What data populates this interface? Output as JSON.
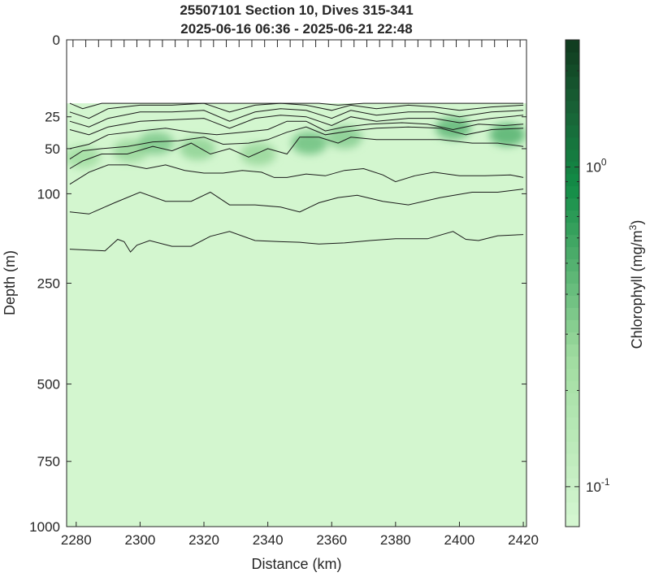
{
  "chart_data": {
    "type": "heatmap",
    "title": "25507101 Section 10, Dives 315-341",
    "subtitle": "2025-06-16 06:36 - 2025-06-21 22:48",
    "xlabel": "Distance (km)",
    "ylabel": "Depth (m)",
    "xlim": [
      2277,
      2421
    ],
    "x_ticks": [
      2280,
      2300,
      2320,
      2340,
      2360,
      2380,
      2400,
      2420
    ],
    "x_tick_labels": [
      "2280",
      "2300",
      "2320",
      "2340",
      "2360",
      "2380",
      "2400",
      "2420"
    ],
    "ylim": [
      0,
      1000
    ],
    "y_scale": "sqrt",
    "y_ticks": [
      0,
      25,
      50,
      100,
      250,
      500,
      750,
      1000
    ],
    "y_tick_labels": [
      "0",
      "25",
      "50",
      "100",
      "250",
      "500",
      "750",
      "1000"
    ],
    "colorbar": {
      "label": "Chlorophyll (mg/m",
      "label_superscript": "3",
      "label_close": ")",
      "scale": "log",
      "range": [
        0.075,
        2.5
      ],
      "tick_values": [
        1.0,
        0.1
      ],
      "tick_labels": [
        {
          "base": "10",
          "exp": "0"
        },
        {
          "base": "10",
          "exp": "-1"
        }
      ],
      "colors": {
        "low": "#d6f7d2",
        "high": "#0f3a1e"
      }
    },
    "data_top_depth": 17,
    "background_value": 0.08,
    "dive_positions_km": [
      2279,
      2283,
      2287,
      2291,
      2295,
      2299,
      2303,
      2307,
      2311,
      2315,
      2319,
      2323,
      2327,
      2331,
      2335,
      2339,
      2343,
      2347,
      2351,
      2355,
      2359,
      2363,
      2367,
      2371,
      2375,
      2379,
      2383,
      2387,
      2391,
      2395,
      2399,
      2403,
      2407,
      2411,
      2415,
      2419
    ],
    "chlorophyll_blobs": [
      {
        "x": 2282,
        "depth": 58,
        "value": 0.25
      },
      {
        "x": 2297,
        "depth": 52,
        "value": 0.28
      },
      {
        "x": 2305,
        "depth": 45,
        "value": 0.35
      },
      {
        "x": 2318,
        "depth": 50,
        "value": 0.3
      },
      {
        "x": 2337,
        "depth": 55,
        "value": 0.28
      },
      {
        "x": 2353,
        "depth": 45,
        "value": 0.4
      },
      {
        "x": 2364,
        "depth": 40,
        "value": 0.32
      },
      {
        "x": 2398,
        "depth": 33,
        "value": 0.45
      },
      {
        "x": 2415,
        "depth": 38,
        "value": 0.5
      }
    ],
    "contours": [
      {
        "x": [
          2278,
          2282,
          2288,
          2298,
          2310,
          2320,
          2330,
          2340,
          2350,
          2356,
          2362,
          2370,
          2380,
          2390,
          2400,
          2410,
          2420
        ],
        "depth": [
          17,
          20,
          17,
          17,
          17,
          17,
          17,
          17,
          17,
          17,
          18,
          17,
          17,
          17,
          17,
          17,
          17
        ]
      },
      {
        "x": [
          2278,
          2284,
          2290,
          2300,
          2310,
          2320,
          2328,
          2336,
          2344,
          2352,
          2360,
          2366,
          2374,
          2384,
          2392,
          2400,
          2410,
          2420
        ],
        "depth": [
          22,
          26,
          20,
          18,
          18,
          17,
          22,
          18,
          17,
          18,
          21,
          18,
          20,
          18,
          19,
          21,
          19,
          18
        ]
      },
      {
        "x": [
          2278,
          2284,
          2290,
          2300,
          2310,
          2320,
          2328,
          2336,
          2344,
          2352,
          2360,
          2366,
          2374,
          2384,
          2392,
          2400,
          2410,
          2420
        ],
        "depth": [
          28,
          32,
          26,
          22,
          22,
          21,
          28,
          22,
          20,
          21,
          26,
          21,
          24,
          22,
          22,
          25,
          22,
          21
        ]
      },
      {
        "x": [
          2278,
          2284,
          2290,
          2300,
          2310,
          2320,
          2328,
          2336,
          2344,
          2352,
          2360,
          2366,
          2374,
          2384,
          2392,
          2400,
          2410,
          2420
        ],
        "depth": [
          34,
          38,
          32,
          28,
          27,
          26,
          33,
          26,
          24,
          25,
          31,
          25,
          28,
          26,
          26,
          29,
          26,
          24
        ]
      },
      {
        "x": [
          2278,
          2284,
          2290,
          2300,
          2308,
          2316,
          2324,
          2332,
          2340,
          2346,
          2352,
          2358,
          2364,
          2372,
          2382,
          2390,
          2398,
          2406,
          2414,
          2420
        ],
        "depth": [
          50,
          46,
          38,
          35,
          33,
          36,
          38,
          36,
          34,
          28,
          28,
          35,
          32,
          30,
          29,
          30,
          34,
          30,
          31,
          30
        ]
      },
      {
        "x": [
          2278,
          2282,
          2288,
          2296,
          2304,
          2312,
          2320,
          2326,
          2334,
          2340,
          2346,
          2352,
          2358,
          2366,
          2374,
          2384,
          2394,
          2402,
          2410,
          2420
        ],
        "depth": [
          60,
          52,
          50,
          48,
          44,
          43,
          40,
          46,
          45,
          42,
          36,
          32,
          38,
          35,
          33,
          32,
          33,
          38,
          34,
          33
        ]
      },
      {
        "x": [
          2278,
          2282,
          2288,
          2296,
          2304,
          2310,
          2316,
          2322,
          2328,
          2334,
          2340,
          2346,
          2350,
          2356,
          2362,
          2366,
          2374,
          2384,
          2394,
          2404,
          2412,
          2420
        ],
        "depth": [
          70,
          62,
          55,
          55,
          48,
          52,
          45,
          55,
          50,
          58,
          50,
          55,
          40,
          40,
          45,
          40,
          42,
          42,
          42,
          45,
          45,
          48
        ]
      },
      {
        "x": [
          2278,
          2284,
          2290,
          2296,
          2302,
          2308,
          2314,
          2320,
          2326,
          2332,
          2338,
          2342,
          2346,
          2352,
          2358,
          2364,
          2370,
          2376,
          2380,
          2386,
          2392,
          2400,
          2408,
          2416,
          2420
        ],
        "depth": [
          88,
          74,
          66,
          66,
          70,
          66,
          72,
          75,
          75,
          72,
          74,
          80,
          80,
          76,
          78,
          72,
          70,
          77,
          85,
          78,
          74,
          78,
          78,
          77,
          80
        ]
      },
      {
        "x": [
          2278,
          2284,
          2292,
          2300,
          2308,
          2316,
          2322,
          2328,
          2336,
          2344,
          2350,
          2356,
          2362,
          2368,
          2376,
          2384,
          2394,
          2404,
          2412,
          2420
        ],
        "depth": [
          125,
          128,
          112,
          98,
          110,
          110,
          98,
          115,
          115,
          118,
          125,
          112,
          105,
          102,
          110,
          115,
          105,
          98,
          98,
          94
        ]
      },
      {
        "x": [
          2278,
          2289,
          2293,
          2295,
          2297,
          2299,
          2303,
          2310,
          2316,
          2322,
          2328,
          2336,
          2344,
          2350,
          2356,
          2364,
          2372,
          2380,
          2390,
          2398,
          2402,
          2406,
          2412,
          2420
        ],
        "depth": [
          185,
          188,
          168,
          172,
          190,
          178,
          170,
          180,
          180,
          163,
          155,
          170,
          172,
          173,
          176,
          174,
          170,
          167,
          167,
          155,
          168,
          170,
          162,
          160
        ]
      }
    ]
  }
}
